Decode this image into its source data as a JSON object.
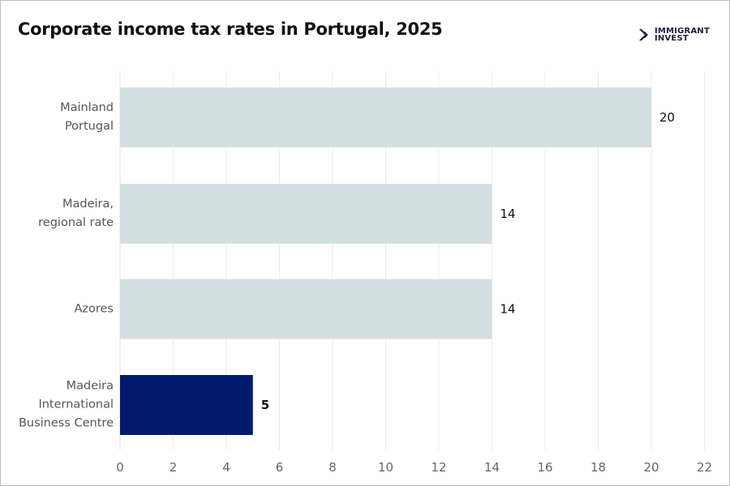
{
  "chart_data": {
    "type": "bar",
    "orientation": "horizontal",
    "title": "Corporate income tax rates in Portugal, 2025",
    "categories": [
      "Mainland\nPortugal",
      "Madeira,\nregional rate",
      "Azores",
      "Madeira\nInternational\nBusiness Centre"
    ],
    "values": [
      20,
      14,
      14,
      5
    ],
    "value_labels": [
      "20",
      "14",
      "14",
      "5"
    ],
    "bar_colors": [
      "#d4dfe3",
      "#d4dfe3",
      "#d4dfe3",
      "#001a6b"
    ],
    "highlight_label_bold": [
      false,
      false,
      false,
      true
    ],
    "xlim": [
      0,
      22
    ],
    "x_ticks": [
      0,
      2,
      4,
      6,
      8,
      10,
      12,
      14,
      16,
      18,
      20,
      22
    ],
    "grid": "vertical",
    "xlabel": "",
    "ylabel": ""
  },
  "logo": {
    "line1": "IMMIGRANT",
    "line2": "INVEST"
  }
}
